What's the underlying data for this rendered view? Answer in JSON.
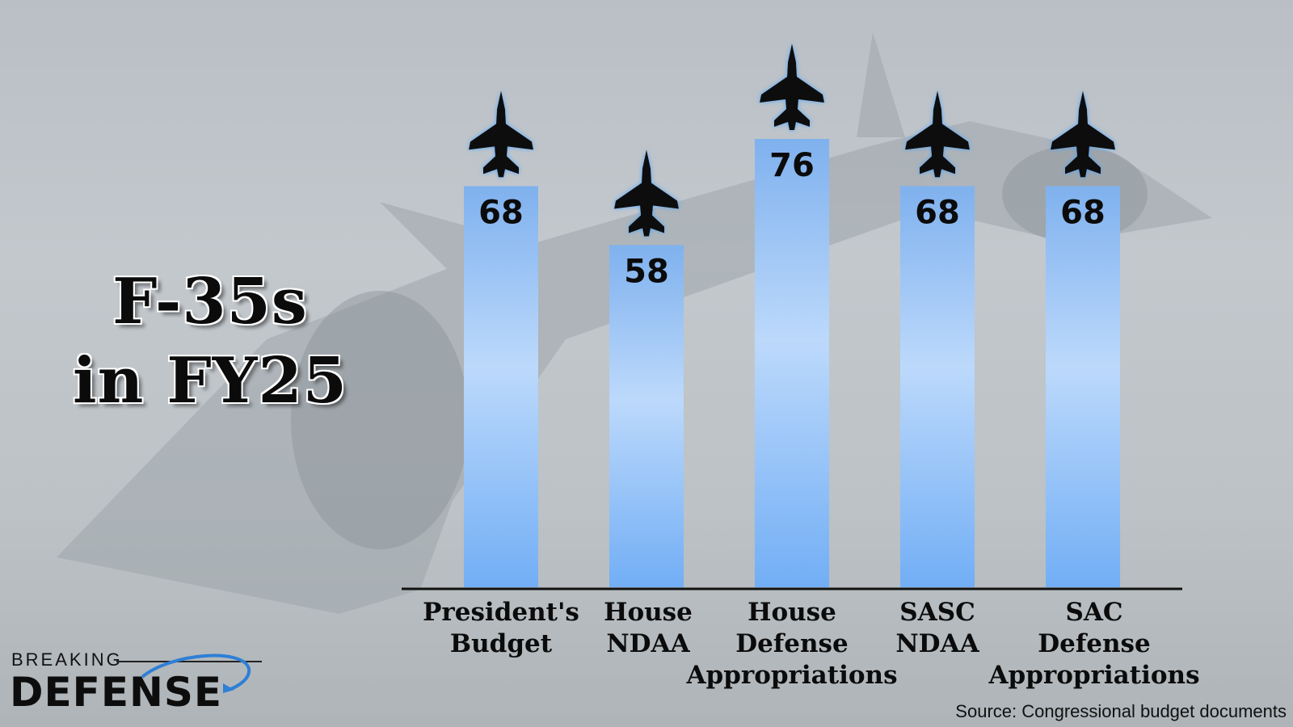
{
  "title": {
    "line1": "F-35s",
    "line2": "in FY25"
  },
  "source": "Source: Congressional budget documents",
  "logo": {
    "top": "BREAKING",
    "main": "DEFENSE"
  },
  "colors": {
    "bar_top": "#7fb1ee",
    "bar_mid": "#bcd9fb",
    "bar_bottom": "#72aef5",
    "jet": "#0c0c0c",
    "jet_glow": "#4aa3ff"
  },
  "chart_data": {
    "type": "bar",
    "categories": [
      [
        "President's",
        "Budget"
      ],
      [
        "House",
        "NDAA"
      ],
      [
        "House",
        "Defense",
        "Appropriations"
      ],
      [
        "SASC",
        "NDAA"
      ],
      [
        "SAC",
        "Defense",
        "Appropriations"
      ]
    ],
    "values": [
      68,
      58,
      76,
      68,
      68
    ],
    "ylim": [
      0,
      76
    ],
    "grid": false,
    "legend": "none"
  }
}
